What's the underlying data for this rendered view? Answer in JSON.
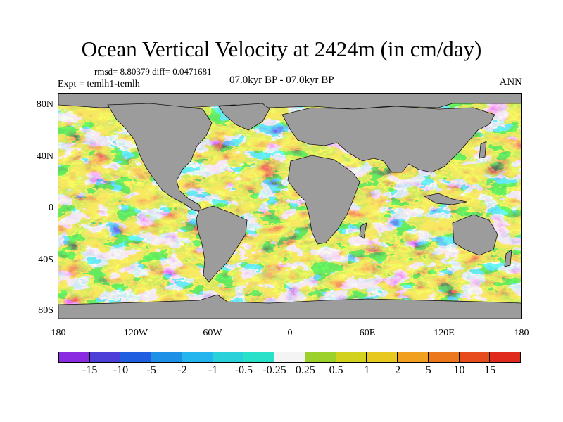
{
  "title": "Ocean Vertical Velocity at 2424m (in cm/day)",
  "stats": "rmsd= 8.80379 diff= 0.0471681",
  "experiment": "Expt = temlh1-temlh",
  "period": "07.0kyr BP - 07.0kyr BP",
  "season": "ANN",
  "lat_labels": [
    "80N",
    "40N",
    "0",
    "40S",
    "80S"
  ],
  "lon_labels": [
    "180",
    "120W",
    "60W",
    "0",
    "60E",
    "120E",
    "180"
  ],
  "colorbar": {
    "labels": [
      "-15",
      "-10",
      "-5",
      "-2",
      "-1",
      "-0.5",
      "-0.25",
      "0.25",
      "0.5",
      "1",
      "2",
      "5",
      "10",
      "15"
    ],
    "colors": [
      "#8a2be2",
      "#4b3fd8",
      "#1f5fe0",
      "#1e90e6",
      "#24b4ee",
      "#2ad1d8",
      "#29e0c8",
      "#f4f4f4",
      "#9bd12a",
      "#d2d21e",
      "#e6c81e",
      "#f0a01e",
      "#ec781e",
      "#e64c1e",
      "#e02a1e"
    ]
  },
  "land_color": "#9c9c9c"
}
